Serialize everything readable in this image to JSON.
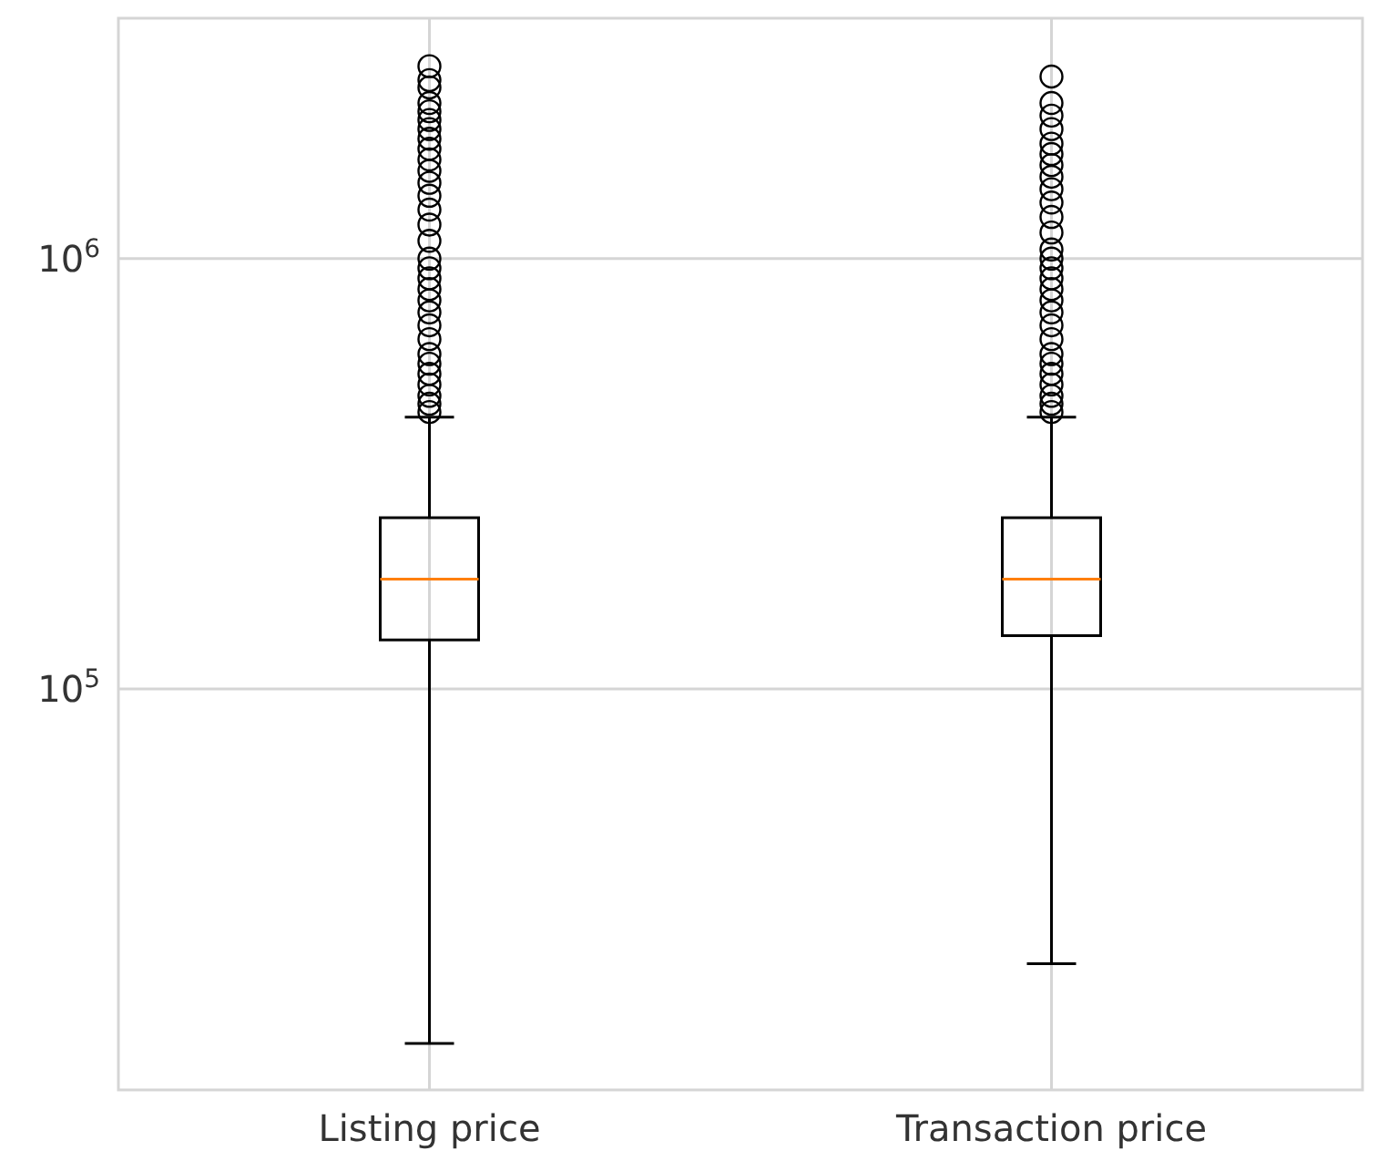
{
  "chart_data": {
    "type": "box",
    "categories": [
      "Listing price",
      "Transaction price"
    ],
    "boxes": [
      {
        "low": 15000,
        "q1": 130000,
        "median": 180000,
        "q3": 250000,
        "high": 428000,
        "outliers": [
          2800000,
          2600000,
          2500000,
          2300000,
          2200000,
          2100000,
          2000000,
          1900000,
          1800000,
          1700000,
          1600000,
          1500000,
          1400000,
          1300000,
          1200000,
          1100000,
          1000000,
          950000,
          900000,
          850000,
          800000,
          750000,
          700000,
          650000,
          600000,
          570000,
          540000,
          510000,
          480000,
          460000,
          440000
        ]
      },
      {
        "low": 23000,
        "q1": 133000,
        "median": 180000,
        "q3": 250000,
        "high": 428000,
        "outliers": [
          2650000,
          2300000,
          2150000,
          2000000,
          1850000,
          1750000,
          1650000,
          1550000,
          1450000,
          1350000,
          1250000,
          1150000,
          1050000,
          1000000,
          950000,
          900000,
          850000,
          800000,
          750000,
          700000,
          650000,
          600000,
          570000,
          540000,
          510000,
          480000,
          460000,
          440000
        ]
      }
    ],
    "log": true,
    "ylim": [
      11700,
      3620000
    ],
    "yticks": [
      {
        "value": 100000,
        "label": "10$^{5}$"
      },
      {
        "value": 1000000,
        "label": "10$^{6}$"
      }
    ],
    "grid": true
  }
}
